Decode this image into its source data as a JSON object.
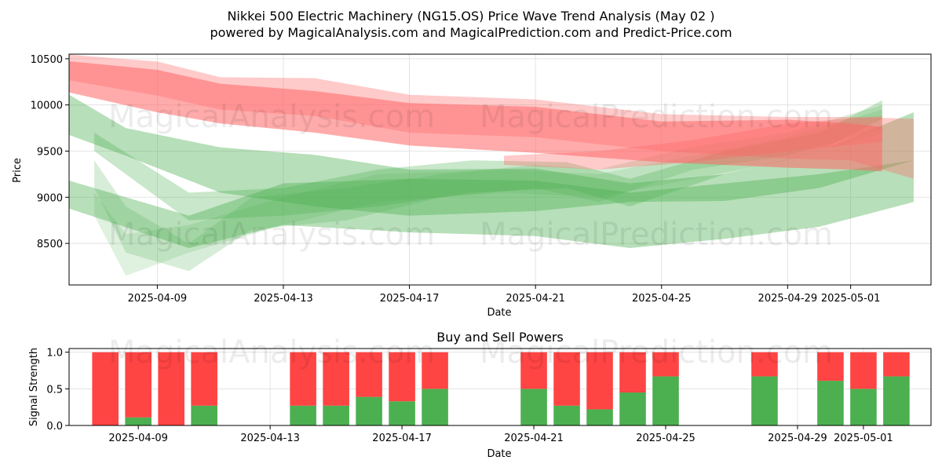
{
  "title_line1": "Nikkei 500 Electric Machinery (NG15.OS) Price Wave Trend Analysis (May 02 )",
  "title_line2": "powered by MagicalAnalysis.com and MagicalPrediction.com and Predict-Price.com",
  "watermarks": [
    "MagicalAnalysis.com",
    "MagicalPrediction.com"
  ],
  "colors": {
    "sell": "#ff4444",
    "buy": "#4caf50",
    "sell_wave": "#ff6666",
    "buy_wave": "#4caf50",
    "grid": "#dddddd"
  },
  "chart_data": [
    {
      "type": "area",
      "xlabel": "Date",
      "ylabel": "Price",
      "ylim": [
        8050,
        10550
      ],
      "xlim": [
        "2025-04-06",
        "2025-05-03"
      ],
      "grid": true,
      "x_ticks": [
        "2025-04-09",
        "2025-04-13",
        "2025-04-17",
        "2025-04-21",
        "2025-04-25",
        "2025-04-29",
        "2025-05-01"
      ],
      "y_ticks": [
        8500,
        9000,
        9500,
        10000,
        10500
      ],
      "series": [
        {
          "color": "red",
          "opacity": 0.55,
          "x": [
            "2025-04-06",
            "2025-04-09",
            "2025-04-11",
            "2025-04-14",
            "2025-04-17",
            "2025-04-21",
            "2025-04-25",
            "2025-04-29",
            "2025-05-01",
            "2025-05-02"
          ],
          "upper": [
            10480,
            10380,
            10230,
            10150,
            10020,
            9980,
            9820,
            9840,
            9800,
            9760
          ],
          "lower": [
            10150,
            9920,
            9800,
            9700,
            9560,
            9480,
            9380,
            9320,
            9300,
            9280
          ]
        },
        {
          "color": "red",
          "opacity": 0.35,
          "x": [
            "2025-04-06",
            "2025-04-09",
            "2025-04-11",
            "2025-04-14",
            "2025-04-17",
            "2025-04-21",
            "2025-04-25",
            "2025-04-29",
            "2025-05-01",
            "2025-05-03"
          ],
          "upper": [
            10550,
            10470,
            10300,
            10290,
            10110,
            10060,
            9900,
            9870,
            9870,
            9850
          ],
          "lower": [
            10280,
            10100,
            9950,
            9880,
            9700,
            9650,
            9500,
            9420,
            9400,
            9200
          ]
        },
        {
          "color": "red",
          "opacity": 0.35,
          "x": [
            "2025-04-20",
            "2025-04-23",
            "2025-04-26",
            "2025-04-29",
            "2025-05-02"
          ],
          "upper": [
            9450,
            9500,
            9620,
            9800,
            9880
          ],
          "lower": [
            9350,
            9300,
            9380,
            9500,
            9600
          ]
        },
        {
          "color": "green",
          "opacity": 0.4,
          "x": [
            "2025-04-06",
            "2025-04-08",
            "2025-04-11",
            "2025-04-14",
            "2025-04-17",
            "2025-04-21",
            "2025-04-24",
            "2025-04-27",
            "2025-04-30",
            "2025-05-03"
          ],
          "upper": [
            10150,
            9750,
            9540,
            9460,
            9300,
            9310,
            9150,
            9250,
            9500,
            9920
          ],
          "lower": [
            9700,
            9450,
            9050,
            8900,
            8800,
            8850,
            8950,
            8960,
            9100,
            9400
          ]
        },
        {
          "color": "green",
          "opacity": 0.4,
          "x": [
            "2025-04-06",
            "2025-04-10",
            "2025-04-13",
            "2025-04-17",
            "2025-04-21",
            "2025-04-24",
            "2025-04-27",
            "2025-04-30",
            "2025-05-03"
          ],
          "upper": [
            9200,
            8800,
            9150,
            9200,
            9180,
            9050,
            9150,
            9250,
            9400
          ],
          "lower": [
            8900,
            8450,
            8700,
            8620,
            8580,
            8450,
            8550,
            8680,
            8950
          ]
        },
        {
          "color": "green",
          "opacity": 0.3,
          "x": [
            "2025-04-07",
            "2025-04-10",
            "2025-04-13",
            "2025-04-16",
            "2025-04-19",
            "2025-04-22",
            "2025-04-24",
            "2025-04-27",
            "2025-04-30",
            "2025-05-02"
          ],
          "upper": [
            9700,
            9050,
            9100,
            9300,
            9400,
            9380,
            9200,
            9500,
            9700,
            10050
          ],
          "lower": [
            9500,
            8750,
            8800,
            8900,
            9050,
            9100,
            8900,
            9250,
            9500,
            9850
          ]
        },
        {
          "color": "green",
          "opacity": 0.22,
          "x": [
            "2025-04-07",
            "2025-04-08",
            "2025-04-10",
            "2025-04-12",
            "2025-04-15",
            "2025-04-18",
            "2025-04-21",
            "2025-04-23",
            "2025-04-26",
            "2025-04-29",
            "2025-05-02"
          ],
          "upper": [
            9400,
            8900,
            8500,
            9000,
            9100,
            9250,
            9350,
            9300,
            9550,
            9700,
            10000
          ],
          "lower": [
            9100,
            8400,
            8200,
            8650,
            8750,
            9000,
            9100,
            8950,
            9300,
            9450,
            9750
          ]
        },
        {
          "color": "green",
          "opacity": 0.18,
          "x": [
            "2025-04-07",
            "2025-04-08",
            "2025-04-10",
            "2025-04-13",
            "2025-04-16",
            "2025-04-20",
            "2025-04-23",
            "2025-04-26",
            "2025-04-29",
            "2025-05-02"
          ],
          "upper": [
            9050,
            8600,
            8700,
            9000,
            9250,
            9300,
            9250,
            9450,
            9650,
            9950
          ],
          "lower": [
            8800,
            8150,
            8400,
            8700,
            8950,
            9050,
            9000,
            9200,
            9400,
            9700
          ]
        }
      ]
    },
    {
      "type": "bar",
      "title": "Buy and Sell Powers",
      "xlabel": "Date",
      "ylabel": "Signal Strength",
      "ylim": [
        0,
        1.05
      ],
      "y_ticks": [
        0.0,
        0.5,
        1.0
      ],
      "x_ticks": [
        "2025-04-09",
        "2025-04-13",
        "2025-04-17",
        "2025-04-21",
        "2025-04-25",
        "2025-04-29",
        "2025-05-01"
      ],
      "categories": [
        "2025-04-08",
        "2025-04-09",
        "2025-04-10",
        "2025-04-11",
        "2025-04-14",
        "2025-04-15",
        "2025-04-16",
        "2025-04-17",
        "2025-04-18",
        "2025-04-21",
        "2025-04-22",
        "2025-04-23",
        "2025-04-24",
        "2025-04-25",
        "2025-04-28",
        "2025-04-30",
        "2025-05-01",
        "2025-05-02"
      ],
      "buy": [
        0.0,
        0.11,
        0.0,
        0.27,
        0.27,
        0.27,
        0.39,
        0.33,
        0.5,
        0.5,
        0.27,
        0.22,
        0.45,
        0.67,
        0.67,
        0.61,
        0.5,
        0.67
      ],
      "sell": [
        1.0,
        0.89,
        1.0,
        0.73,
        0.73,
        0.73,
        0.61,
        0.67,
        0.5,
        0.5,
        0.73,
        0.78,
        0.55,
        0.33,
        0.33,
        0.39,
        0.5,
        0.33
      ]
    }
  ]
}
